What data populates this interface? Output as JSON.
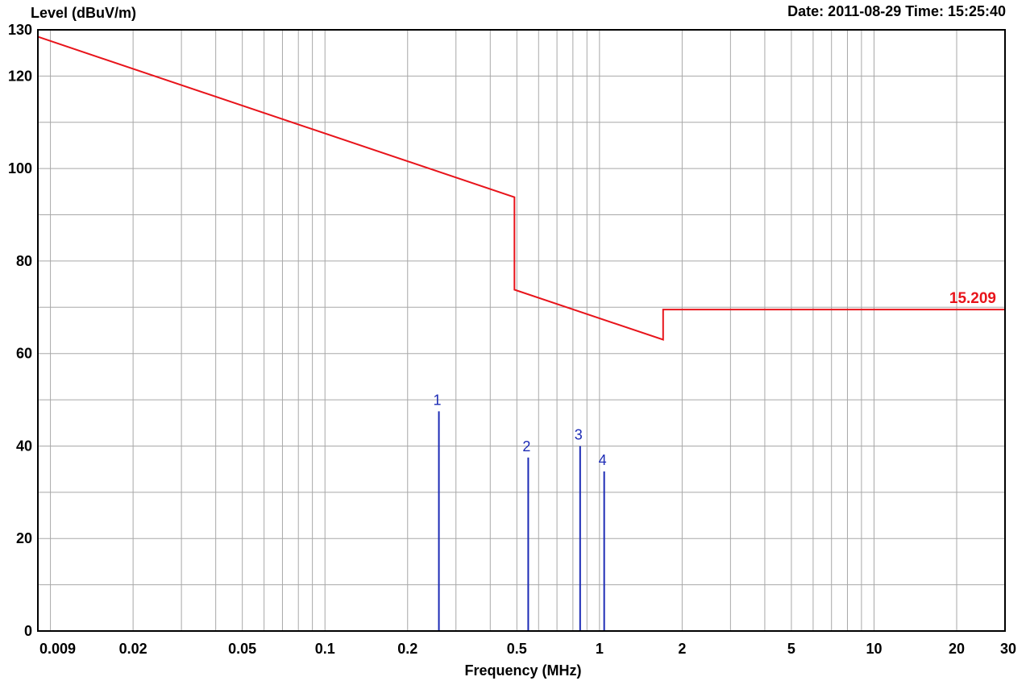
{
  "header": {
    "ylabel": "Level (dBuV/m)",
    "datetime": "Date: 2011-08-29  Time: 15:25:40"
  },
  "chart_data": {
    "type": "line",
    "xlabel": "Frequency (MHz)",
    "ylabel": "Level (dBuV/m)",
    "xscale": "log",
    "xlim": [
      0.009,
      30
    ],
    "ylim": [
      0,
      130
    ],
    "grid": true,
    "x_ticks": [
      {
        "value": 0.009,
        "label": "0.009"
      },
      {
        "value": 0.02,
        "label": "0.02"
      },
      {
        "value": 0.05,
        "label": "0.05"
      },
      {
        "value": 0.1,
        "label": "0.1"
      },
      {
        "value": 0.2,
        "label": "0.2"
      },
      {
        "value": 0.5,
        "label": "0.5"
      },
      {
        "value": 1,
        "label": "1"
      },
      {
        "value": 2,
        "label": "2"
      },
      {
        "value": 5,
        "label": "5"
      },
      {
        "value": 10,
        "label": "10"
      },
      {
        "value": 20,
        "label": "20"
      },
      {
        "value": 30,
        "label": "30"
      }
    ],
    "y_ticks": [
      {
        "value": 0,
        "label": "0"
      },
      {
        "value": 20,
        "label": "20"
      },
      {
        "value": 40,
        "label": "40"
      },
      {
        "value": 60,
        "label": "60"
      },
      {
        "value": 80,
        "label": "80"
      },
      {
        "value": 100,
        "label": "100"
      },
      {
        "value": 120,
        "label": "120"
      },
      {
        "value": 130,
        "label": "130"
      }
    ],
    "limit_line": {
      "name": "15.209",
      "color": "#e8141b",
      "points": [
        {
          "x": 0.009,
          "y": 128.5
        },
        {
          "x": 0.49,
          "y": 93.8
        },
        {
          "x": 0.49,
          "y": 73.8
        },
        {
          "x": 1.705,
          "y": 63.0
        },
        {
          "x": 1.705,
          "y": 69.5
        },
        {
          "x": 30,
          "y": 69.5
        }
      ]
    },
    "markers": {
      "color": "#1c2bb5",
      "items": [
        {
          "label": "1",
          "freq": 0.26,
          "level": 47.5
        },
        {
          "label": "2",
          "freq": 0.55,
          "level": 37.5
        },
        {
          "label": "3",
          "freq": 0.85,
          "level": 40.0
        },
        {
          "label": "4",
          "freq": 1.04,
          "level": 34.5
        }
      ]
    }
  }
}
